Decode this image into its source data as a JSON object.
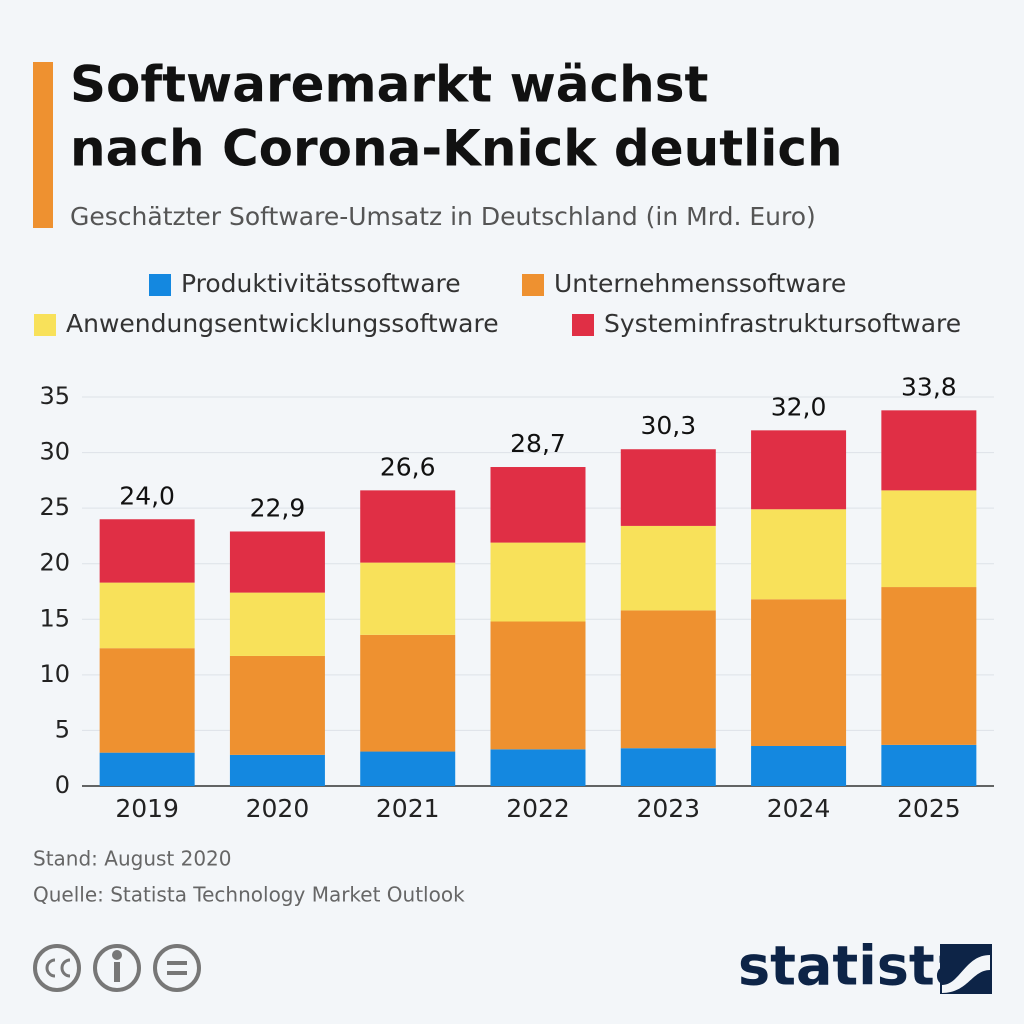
{
  "chart_data": {
    "type": "stacked_bar",
    "title": [
      "Softwaremarkt wächst",
      "nach Corona-Knick deutlich"
    ],
    "subtitle": "Geschätzter Software-Umsatz in Deutschland (in Mrd. Euro)",
    "categories": [
      "2019",
      "2020",
      "2021",
      "2022",
      "2023",
      "2024",
      "2025"
    ],
    "series": [
      {
        "name": "Produktivitätssoftware",
        "color": "#1488e0",
        "values": [
          3.0,
          2.8,
          3.1,
          3.3,
          3.4,
          3.6,
          3.7
        ]
      },
      {
        "name": "Unternehmenssoftware",
        "color": "#ee9130",
        "values": [
          9.4,
          8.9,
          10.5,
          11.5,
          12.4,
          13.2,
          14.2
        ]
      },
      {
        "name": "Anwendungsentwicklungssoftware",
        "color": "#f8e15a",
        "values": [
          5.9,
          5.7,
          6.5,
          7.1,
          7.6,
          8.1,
          8.7
        ]
      },
      {
        "name": "Systeminfrastruktursoftware",
        "color": "#e02f45",
        "values": [
          5.7,
          5.5,
          6.5,
          6.8,
          6.9,
          7.1,
          7.2
        ]
      }
    ],
    "totals": [
      24.0,
      22.9,
      26.6,
      28.7,
      30.3,
      32.0,
      33.8
    ],
    "total_labels": [
      "24,0",
      "22,9",
      "26,6",
      "28,7",
      "30,3",
      "32,0",
      "33,8"
    ],
    "ylim": [
      0,
      35
    ],
    "yticks": [
      0,
      5,
      10,
      15,
      20,
      25,
      30,
      35
    ],
    "grid": true,
    "legend": "top",
    "notes": [
      "Stand: August 2020",
      "Quelle: Statista Technology Market Outlook"
    ],
    "logo": "statista"
  }
}
